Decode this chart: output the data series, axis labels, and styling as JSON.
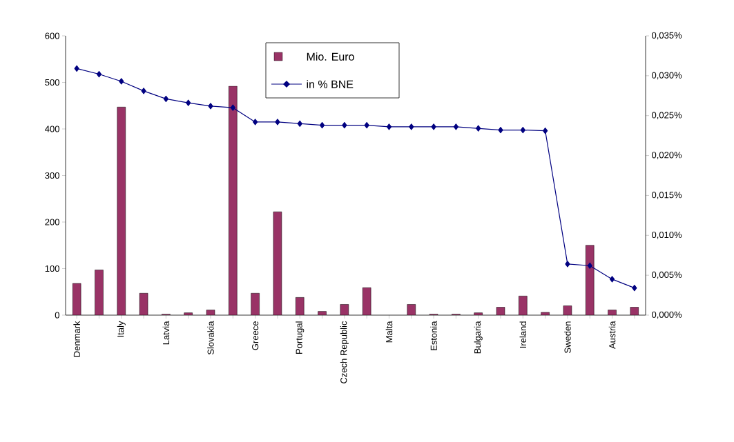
{
  "chart_data": {
    "type": "bar",
    "categories": [
      "Denmark",
      null,
      "Italy",
      null,
      "Latvia",
      null,
      "Slovakia",
      null,
      "Greece",
      null,
      "Portugal",
      null,
      "Czech Republic",
      null,
      "Malta",
      null,
      "Estonia",
      null,
      "Bulgaria",
      null,
      "Ireland",
      null,
      "Sweden",
      null,
      "Austria",
      null
    ],
    "series": [
      {
        "name": "Mio. Euro",
        "color": "#993366",
        "values": [
          68,
          97,
          447,
          47,
          2,
          5,
          11,
          492,
          47,
          222,
          38,
          8,
          23,
          59,
          null,
          23,
          2,
          2,
          5,
          17,
          41,
          6,
          20,
          150,
          11,
          17
        ]
      },
      {
        "name": "in % BNE",
        "type": "line",
        "axis": "y2",
        "color": "#000080",
        "values": [
          0.0309,
          0.0302,
          0.0293,
          0.0281,
          0.0271,
          0.0266,
          0.0262,
          0.026,
          0.0242,
          0.0242,
          0.024,
          0.0238,
          0.0238,
          0.0238,
          0.0236,
          0.0236,
          0.0236,
          0.0236,
          0.0234,
          0.0232,
          0.0232,
          0.0231,
          0.0064,
          0.0062,
          0.0045,
          0.0034
        ]
      }
    ],
    "ylim": [
      0,
      600
    ],
    "yticks": [
      0,
      100,
      200,
      300,
      400,
      500,
      600
    ],
    "y2lim": [
      0,
      0.035
    ],
    "y2ticks": [
      {
        "value": 0,
        "label": "0,000%"
      },
      {
        "value": 0.005,
        "label": "0,005%"
      },
      {
        "value": 0.01,
        "label": "0,010%"
      },
      {
        "value": 0.015,
        "label": "0,015%"
      },
      {
        "value": 0.02,
        "label": "0,020%"
      },
      {
        "value": 0.025,
        "label": "0,025%"
      },
      {
        "value": 0.03,
        "label": "0,030%"
      },
      {
        "value": 0.035,
        "label": "0,035%"
      }
    ],
    "marker": "diamond",
    "line_style": "solid",
    "grid": false,
    "legend": "top"
  }
}
